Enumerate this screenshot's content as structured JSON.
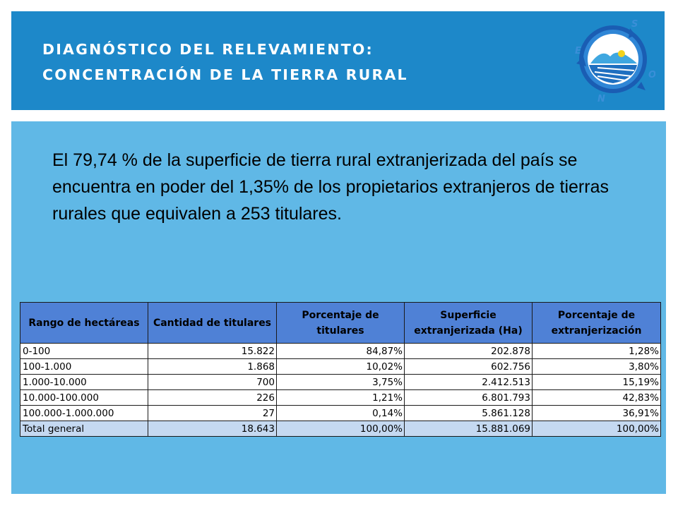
{
  "header": {
    "title_line1": "DIAGNÓSTICO DEL RELEVAMIENTO:",
    "title_line2": "CONCENTRACIÓN DE LA TIERRA RURAL",
    "logo_letters": {
      "top": "S",
      "left": "E",
      "right": "O",
      "bottom": "N"
    }
  },
  "lead_text": "El 79,74 % de la superficie de tierra rural extranjerizada del país se encuentra en poder del 1,35% de los propietarios extranjeros de tierras rurales que equivalen a 253 titulares.",
  "table": {
    "headers": [
      "Rango  de hectáreas",
      "Cantidad de titulares",
      "Porcentaje de titulares",
      "Superficie extranjerizada (Ha)",
      "Porcentaje de extranjerización"
    ],
    "rows": [
      [
        "0-100",
        "15.822",
        "84,87%",
        "202.878",
        "1,28%"
      ],
      [
        "100-1.000",
        "1.868",
        "10,02%",
        "602.756",
        "3,80%"
      ],
      [
        "1.000-10.000",
        "700",
        "3,75%",
        "2.412.513",
        "15,19%"
      ],
      [
        "10.000-100.000",
        "226",
        "1,21%",
        "6.801.793",
        "42,83%"
      ],
      [
        "100.000-1.000.000",
        "27",
        "0,14%",
        "5.861.128",
        "36,91%"
      ]
    ],
    "total": [
      "Total general",
      "18.643",
      "100,00%",
      "15.881.069",
      "100,00%"
    ]
  },
  "colors": {
    "header_bg": "#1d88c9",
    "content_bg": "#60b8e6",
    "table_header_bg": "#4f81d6",
    "total_row_bg": "#c5d9f1"
  }
}
